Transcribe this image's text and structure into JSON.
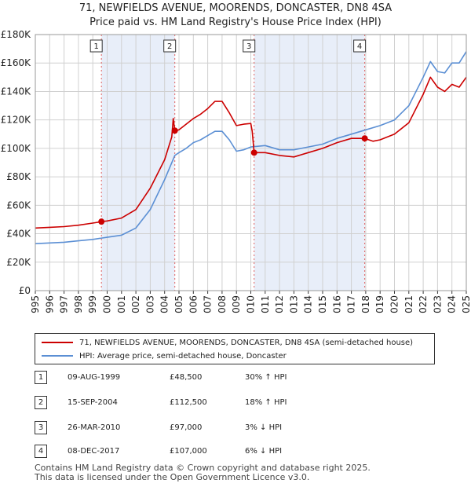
{
  "title_line1": "71, NEWFIELDS AVENUE, MOORENDS, DONCASTER, DN8 4SA",
  "title_line2": "Price paid vs. HM Land Registry's House Price Index (HPI)",
  "colors": {
    "property": "#cc0000",
    "hpi": "#5b8fd4",
    "shade": "#e8eef9",
    "vline": "#e06060"
  },
  "chart_data": {
    "type": "line",
    "ylim": [
      0,
      180000
    ],
    "xlim": [
      1995,
      2025
    ],
    "y_ticks": [
      {
        "value": 0,
        "label": "£0"
      },
      {
        "value": 20000,
        "label": "£20K"
      },
      {
        "value": 40000,
        "label": "£40K"
      },
      {
        "value": 60000,
        "label": "£60K"
      },
      {
        "value": 80000,
        "label": "£80K"
      },
      {
        "value": 100000,
        "label": "£100K"
      },
      {
        "value": 120000,
        "label": "£120K"
      },
      {
        "value": 140000,
        "label": "£140K"
      },
      {
        "value": 160000,
        "label": "£160K"
      },
      {
        "value": 180000,
        "label": "£180K"
      }
    ],
    "x_ticks": [
      "1995",
      "1996",
      "1997",
      "1998",
      "1999",
      "2000",
      "2001",
      "2002",
      "2003",
      "2004",
      "2005",
      "2006",
      "2007",
      "2008",
      "2009",
      "2010",
      "2011",
      "2012",
      "2013",
      "2014",
      "2015",
      "2016",
      "2017",
      "2018",
      "2019",
      "2020",
      "2021",
      "2022",
      "2023",
      "2024",
      "2025"
    ],
    "shaded_periods": [
      [
        1999.6,
        2004.71
      ],
      [
        2010.23,
        2017.93
      ]
    ],
    "series": [
      {
        "name": "71, NEWFIELDS AVENUE, MOORENDS, DONCASTER, DN8 4SA (semi-detached house)",
        "color": "#cc0000",
        "points": [
          [
            1995,
            44000
          ],
          [
            1996,
            44500
          ],
          [
            1997,
            45000
          ],
          [
            1998,
            46000
          ],
          [
            1999,
            47500
          ],
          [
            1999.6,
            48500
          ],
          [
            2000,
            49000
          ],
          [
            2001,
            51000
          ],
          [
            2002,
            57000
          ],
          [
            2003,
            72000
          ],
          [
            2004,
            92000
          ],
          [
            2004.5,
            108000
          ],
          [
            2004.6,
            121000
          ],
          [
            2004.71,
            112500
          ],
          [
            2005,
            113000
          ],
          [
            2005.5,
            117000
          ],
          [
            2006,
            121000
          ],
          [
            2006.5,
            124000
          ],
          [
            2007,
            128000
          ],
          [
            2007.5,
            133000
          ],
          [
            2008,
            133000
          ],
          [
            2008.5,
            125000
          ],
          [
            2009,
            116000
          ],
          [
            2009.5,
            117000
          ],
          [
            2010,
            117500
          ],
          [
            2010.1,
            112000
          ],
          [
            2010.23,
            97000
          ],
          [
            2011,
            97000
          ],
          [
            2012,
            95000
          ],
          [
            2013,
            94000
          ],
          [
            2014,
            97000
          ],
          [
            2015,
            100000
          ],
          [
            2016,
            104000
          ],
          [
            2017,
            107000
          ],
          [
            2017.93,
            107000
          ],
          [
            2018.5,
            105000
          ],
          [
            2019,
            106000
          ],
          [
            2020,
            110000
          ],
          [
            2021,
            118000
          ],
          [
            2022,
            138000
          ],
          [
            2022.5,
            150000
          ],
          [
            2023,
            143000
          ],
          [
            2023.5,
            140000
          ],
          [
            2024,
            145000
          ],
          [
            2024.5,
            143000
          ],
          [
            2025,
            150000
          ]
        ]
      },
      {
        "name": "HPI: Average price, semi-detached house, Doncaster",
        "color": "#5b8fd4",
        "points": [
          [
            1995,
            33000
          ],
          [
            1996,
            33500
          ],
          [
            1997,
            34000
          ],
          [
            1998,
            35000
          ],
          [
            1999,
            36000
          ],
          [
            2000,
            37500
          ],
          [
            2001,
            39000
          ],
          [
            2002,
            44000
          ],
          [
            2003,
            57000
          ],
          [
            2004,
            78000
          ],
          [
            2004.71,
            95000
          ],
          [
            2005,
            97000
          ],
          [
            2005.5,
            100000
          ],
          [
            2006,
            104000
          ],
          [
            2006.5,
            106000
          ],
          [
            2007,
            109000
          ],
          [
            2007.5,
            112000
          ],
          [
            2008,
            112000
          ],
          [
            2008.5,
            106000
          ],
          [
            2009,
            98000
          ],
          [
            2009.5,
            99000
          ],
          [
            2010,
            101000
          ],
          [
            2011,
            102000
          ],
          [
            2012,
            99000
          ],
          [
            2013,
            99000
          ],
          [
            2014,
            101000
          ],
          [
            2015,
            103000
          ],
          [
            2016,
            107000
          ],
          [
            2017,
            110000
          ],
          [
            2018,
            113000
          ],
          [
            2019,
            116000
          ],
          [
            2020,
            120000
          ],
          [
            2021,
            130000
          ],
          [
            2022,
            150000
          ],
          [
            2022.5,
            161000
          ],
          [
            2023,
            154000
          ],
          [
            2023.5,
            153000
          ],
          [
            2024,
            160000
          ],
          [
            2024.5,
            160000
          ],
          [
            2025,
            168000
          ]
        ]
      }
    ],
    "sales": [
      {
        "n": "1",
        "year": 1999.6,
        "value": 48500,
        "date": "09-AUG-1999",
        "price": "£48,500",
        "pct": "30% ↑ HPI"
      },
      {
        "n": "2",
        "year": 2004.71,
        "value": 112500,
        "date": "15-SEP-2004",
        "price": "£112,500",
        "pct": "18% ↑ HPI"
      },
      {
        "n": "3",
        "year": 2010.23,
        "value": 97000,
        "date": "26-MAR-2010",
        "price": "£97,000",
        "pct": "3% ↓ HPI"
      },
      {
        "n": "4",
        "year": 2017.93,
        "value": 107000,
        "date": "08-DEC-2017",
        "price": "£107,000",
        "pct": "6% ↓ HPI"
      }
    ]
  },
  "legend": {
    "property_label": "71, NEWFIELDS AVENUE, MOORENDS, DONCASTER, DN8 4SA (semi-detached house)",
    "hpi_label": "HPI: Average price, semi-detached house, Doncaster"
  },
  "footer_line1": "Contains HM Land Registry data © Crown copyright and database right 2025.",
  "footer_line2": "This data is licensed under the Open Government Licence v3.0."
}
